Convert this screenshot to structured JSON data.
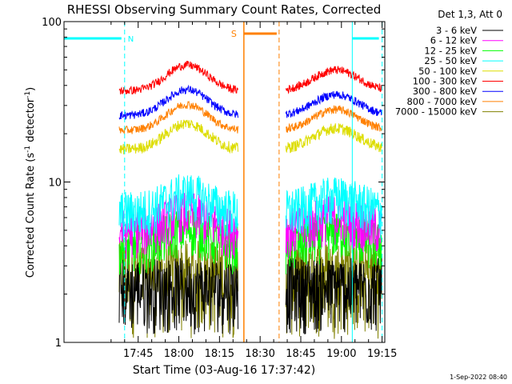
{
  "chart_data": {
    "type": "line",
    "title": "RHESSI Observing Summary Count Rates, Corrected",
    "xlabel": "Start Time (03-Aug-16 17:37:42)",
    "ylabel_main": "Corrected Count Rate (s",
    "ylabel_sup1": "-1",
    "ylabel_mid": " detector",
    "ylabel_sup2": "-1",
    "ylabel_end": ")",
    "yscale": "log",
    "ylim": [
      1,
      100
    ],
    "y_ticks": [
      {
        "value": 1,
        "label": "1"
      },
      {
        "value": 10,
        "label": "10"
      },
      {
        "value": 100,
        "label": "100"
      }
    ],
    "xlim_minutes": [
      17.63,
      136.0
    ],
    "x_ticks": [
      {
        "value": 45,
        "label": "17:45"
      },
      {
        "value": 60,
        "label": "18:00"
      },
      {
        "value": 75,
        "label": "18:15"
      },
      {
        "value": 90,
        "label": "18:30"
      },
      {
        "value": 105,
        "label": "18:45"
      },
      {
        "value": 120,
        "label": "19:00"
      },
      {
        "value": 135,
        "label": "19:15"
      }
    ],
    "legend_title": "Det 1,3, Att 0",
    "legend_position": "right",
    "series": [
      {
        "name": "3 - 6 keV",
        "color": "#000000",
        "level": 1.6
      },
      {
        "name": "6 - 12 keV",
        "color": "#ff00ff",
        "level": 5.0
      },
      {
        "name": "12 - 25 keV",
        "color": "#00ff00",
        "level": 4.0
      },
      {
        "name": "25 - 50 keV",
        "color": "#00ffff",
        "level": 6.5
      },
      {
        "name": "50 - 100 keV",
        "color": "#dddd00",
        "level": 16
      },
      {
        "name": "100 - 300 keV",
        "color": "#ff0000",
        "level": 37
      },
      {
        "name": "300 - 800 keV",
        "color": "#0000ff",
        "level": 26
      },
      {
        "name": "800 - 7000 keV",
        "color": "#ff8000",
        "level": 21
      },
      {
        "name": "7000 - 15000 keV",
        "color": "#808000",
        "level": 1.5
      }
    ],
    "data_segments_minutes": [
      [
        38.0,
        82.0
      ],
      [
        99.5,
        135.0
      ]
    ],
    "night_markers": [
      {
        "label": "N",
        "color": "#00ffff",
        "start": 17.63,
        "end": 40.0
      },
      {
        "label": "",
        "color": "#00ffff",
        "start": 124.0,
        "end": 135.0
      }
    ],
    "saa_markers": [
      {
        "label": "S",
        "color": "#ff8000",
        "start": 84.0,
        "end": 97.0
      }
    ],
    "timestamp": "1-Sep-2022 08:40"
  }
}
